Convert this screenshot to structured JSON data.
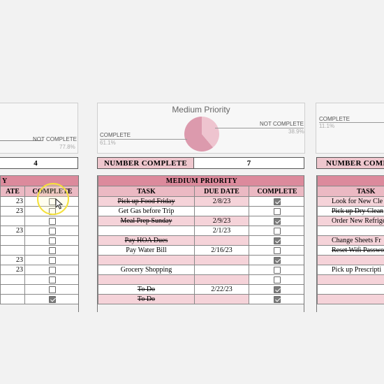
{
  "left_panel": {
    "chart": {
      "not_complete_label": "NOT COMPLETE",
      "not_complete_pct": "77.8%"
    },
    "number_complete_value": "4",
    "title_fragment": "Y",
    "headers": {
      "due_fragment": "ATE",
      "complete": "COMPLETE"
    },
    "rows": [
      {
        "due": "23",
        "checked": false
      },
      {
        "due": "23",
        "checked": false
      },
      {
        "due": "",
        "checked": false
      },
      {
        "due": "23",
        "checked": false
      },
      {
        "due": "",
        "checked": false
      },
      {
        "due": "",
        "checked": false
      },
      {
        "due": "23",
        "checked": false
      },
      {
        "due": "23",
        "checked": false
      },
      {
        "due": "",
        "checked": false
      },
      {
        "due": "",
        "checked": false
      },
      {
        "due": "",
        "checked": true
      }
    ]
  },
  "medium_panel": {
    "chart": {
      "title": "Medium Priority",
      "complete_label": "COMPLETE",
      "complete_pct": "61.1%",
      "not_complete_label": "NOT COMPLETE",
      "not_complete_pct": "38.9%",
      "colors": {
        "complete": "#dc9aad",
        "not_complete": "#eec4cf"
      }
    },
    "number_complete_label": "NUMBER COMPLETE",
    "number_complete_value": "7",
    "title": "MEDIUM PRIORITY",
    "headers": {
      "task": "TASK",
      "due": "DUE DATE",
      "complete": "COMPLETE"
    },
    "rows": [
      {
        "task": "Pick up Food Friday",
        "due": "2/8/23",
        "checked": true,
        "done": true
      },
      {
        "task": "Get Gas before Trip",
        "due": "",
        "checked": false,
        "done": false
      },
      {
        "task": "Meal Prep Sunday",
        "due": "2/9/23",
        "checked": true,
        "done": true
      },
      {
        "task": "",
        "due": "2/1/23",
        "checked": false,
        "done": false
      },
      {
        "task": "Pay HOA Dues",
        "due": "",
        "checked": true,
        "done": true
      },
      {
        "task": "Pay Water Bill",
        "due": "2/16/23",
        "checked": false,
        "done": false
      },
      {
        "task": "",
        "due": "",
        "checked": true,
        "done": false
      },
      {
        "task": "Grocery Shopping",
        "due": "",
        "checked": false,
        "done": false
      },
      {
        "task": "",
        "due": "",
        "checked": false,
        "done": false
      },
      {
        "task": "To Do",
        "due": "2/22/23",
        "checked": true,
        "done": true
      },
      {
        "task": "To Do",
        "due": "",
        "checked": true,
        "done": true
      }
    ]
  },
  "right_panel": {
    "chart": {
      "complete_label": "COMPLETE",
      "complete_pct": "11.1%"
    },
    "number_complete_fragment": "NUMBER COMP",
    "headers": {
      "task": "TASK"
    },
    "rows": [
      {
        "task": "Look for New Cle",
        "done": false
      },
      {
        "task": "Pick up Dry Clean",
        "done": true
      },
      {
        "task": "Order New Refrige",
        "done": false
      },
      {
        "task": "",
        "done": false
      },
      {
        "task": "Change Sheets Fr",
        "done": false
      },
      {
        "task": "Reset Wifi Password fo",
        "done": true
      },
      {
        "task": "",
        "done": false
      },
      {
        "task": "Pick up Prescripti",
        "done": false
      },
      {
        "task": "",
        "done": false
      },
      {
        "task": "",
        "done": false
      },
      {
        "task": "",
        "done": false
      }
    ]
  }
}
